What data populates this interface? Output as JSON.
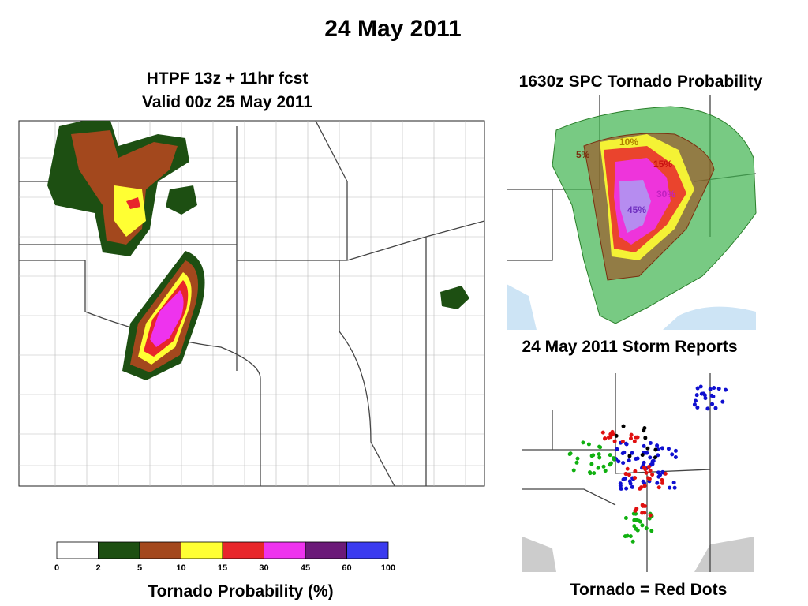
{
  "title": "24 May 2011",
  "left_panel": {
    "title_lines": [
      "HTPF 13z + 11hr fcst",
      "Valid 00z 25 May 2011"
    ]
  },
  "top_right_panel": {
    "title": "1630z SPC Tornado Probability",
    "contour_labels": [
      "5%",
      "10%",
      "15%",
      "30%",
      "45%"
    ]
  },
  "bottom_right_panel": {
    "title": "24 May 2011 Storm Reports",
    "caption": "Tornado = Red Dots"
  },
  "colorbar": {
    "label": "Tornado Probability (%)",
    "ticks": [
      "0",
      "2",
      "5",
      "10",
      "15",
      "30",
      "45",
      "60",
      "100"
    ],
    "colors": [
      "#ffffff",
      "#1d4f12",
      "#a3481d",
      "#ffff33",
      "#e8262b",
      "#ee33ee",
      "#6b1a78",
      "#3b3bef"
    ]
  }
}
